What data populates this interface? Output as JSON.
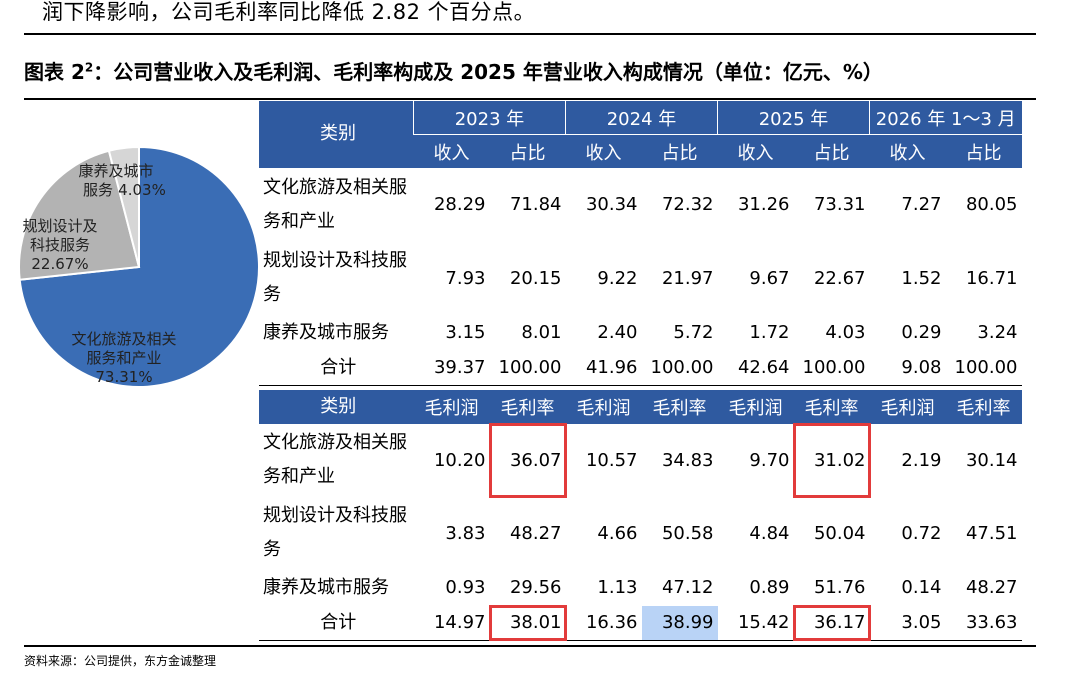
{
  "header_text": "润下降影响，公司毛利率同比降低 2.82 个百分点。",
  "figure": {
    "title": "图表 2",
    "title_sup": "2",
    "title_rest": "：公司营业收入及毛利润、毛利率构成及 2025 年营业收入构成情况（单位：亿元、%）"
  },
  "table": {
    "cat_header": "类别",
    "years": [
      "2023 年",
      "2024 年",
      "2025 年",
      "2026 年 1～3 月"
    ],
    "revenue_subheads": [
      "收入",
      "占比"
    ],
    "profit_subheads": [
      "毛利润",
      "毛利率"
    ],
    "categories": [
      "文化旅游及相关服务和产业",
      "规划设计及科技服务",
      "康养及城市服务"
    ],
    "total_label": "合计",
    "revenue_rows": [
      [
        "28.29",
        "71.84",
        "30.34",
        "72.32",
        "31.26",
        "73.31",
        "7.27",
        "80.05"
      ],
      [
        "7.93",
        "20.15",
        "9.22",
        "21.97",
        "9.67",
        "22.67",
        "1.52",
        "16.71"
      ],
      [
        "3.15",
        "8.01",
        "2.40",
        "5.72",
        "1.72",
        "4.03",
        "0.29",
        "3.24"
      ],
      [
        "39.37",
        "100.00",
        "41.96",
        "100.00",
        "42.64",
        "100.00",
        "9.08",
        "100.00"
      ]
    ],
    "profit_rows": [
      [
        "10.20",
        "36.07",
        "10.57",
        "34.83",
        "9.70",
        "31.02",
        "2.19",
        "30.14"
      ],
      [
        "3.83",
        "48.27",
        "4.66",
        "50.58",
        "4.84",
        "50.04",
        "0.72",
        "47.51"
      ],
      [
        "0.93",
        "29.56",
        "1.13",
        "47.12",
        "0.89",
        "51.76",
        "0.14",
        "48.27"
      ],
      [
        "14.97",
        "38.01",
        "16.36",
        "38.99",
        "15.42",
        "36.17",
        "3.05",
        "33.63"
      ]
    ]
  },
  "pie": {
    "slices": [
      {
        "label_line1": "文化旅游及相关",
        "label_line2": "服务和产业",
        "pct": "73.31%",
        "value": 73.31,
        "color": "#3a6db5"
      },
      {
        "label_line1": "规划设计及",
        "label_line2": "科技服务",
        "pct": "22.67%",
        "value": 22.67,
        "color": "#b3b3b3"
      },
      {
        "label_line1": "康养及城市",
        "label_line2": "服务",
        "pct": "4.03%",
        "value": 4.03,
        "color": "#d6d6d6"
      }
    ]
  },
  "source": "资料来源：公司提供，东方金诚整理"
}
